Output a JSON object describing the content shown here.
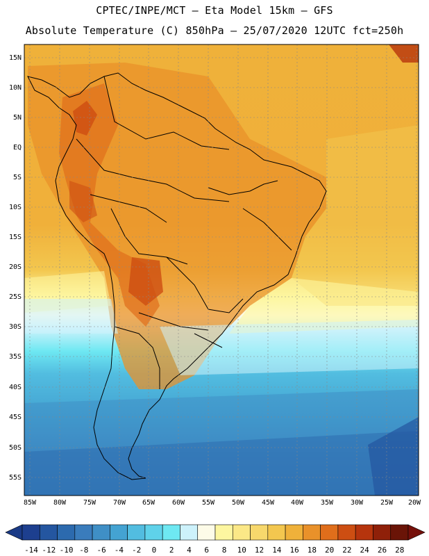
{
  "header": {
    "line1": "CPTEC/INPE/MCT –  Eta Model 15km – GFS",
    "line2": "Absolute Temperature (C) 850hPa – 25/07/2020 12UTC fct=250h"
  },
  "map": {
    "lat_labels": [
      "15N",
      "10N",
      "5N",
      "EQ",
      "5S",
      "10S",
      "15S",
      "20S",
      "25S",
      "30S",
      "35S",
      "40S",
      "45S",
      "50S",
      "55S"
    ],
    "lon_labels": [
      "85W",
      "80W",
      "75W",
      "70W",
      "65W",
      "60W",
      "55W",
      "50W",
      "45W",
      "40W",
      "35W",
      "30W",
      "25W",
      "20W"
    ],
    "grid": true
  },
  "colorbar": {
    "labels": [
      "-14",
      "-12",
      "-10",
      "-8",
      "-6",
      "-4",
      "-2",
      "0",
      "2",
      "4",
      "6",
      "8",
      "10",
      "12",
      "14",
      "16",
      "18",
      "20",
      "22",
      "24",
      "26",
      "28"
    ],
    "colors": [
      "#1d3f8f",
      "#2456a0",
      "#2c6aae",
      "#3a7cbc",
      "#3f8fc6",
      "#44a3d2",
      "#52bde0",
      "#5fd2ea",
      "#6ee8f2",
      "#cdf2fb",
      "#fdfbe8",
      "#fdf6a0",
      "#fbe887",
      "#f7d86c",
      "#f3c74f",
      "#efb13a",
      "#e9912a",
      "#e06e1b",
      "#cd4e12",
      "#b6340d",
      "#8f2009",
      "#6a1407"
    ],
    "under_color": "#1a3a86",
    "over_color": "#75100a"
  }
}
